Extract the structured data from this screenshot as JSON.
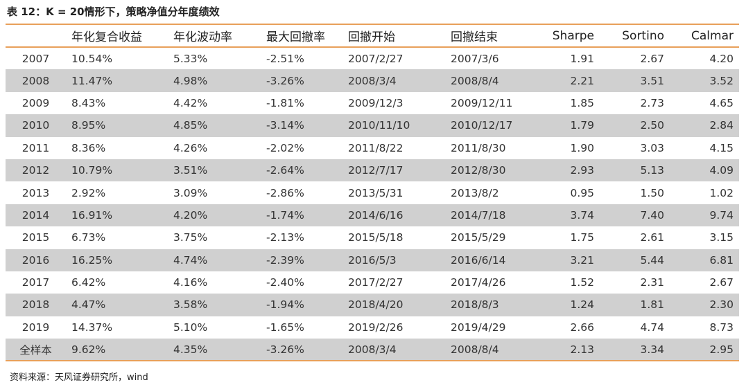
{
  "title": "表 12：K = 20情形下，策略净值分年度绩效",
  "table": {
    "header": [
      "年化复合收益",
      "年化波动率",
      "最大回撤率",
      "回撤开始",
      "回撤结束",
      "Sharpe",
      "Sortino",
      "Calmar"
    ],
    "rows": [
      [
        "2007",
        "10.54%",
        "5.33%",
        "-2.51%",
        "2007/2/27",
        "2007/3/6",
        "1.91",
        "2.67",
        "4.20"
      ],
      [
        "2008",
        "11.47%",
        "4.98%",
        "-3.26%",
        "2008/3/4",
        "2008/8/4",
        "2.21",
        "3.51",
        "3.52"
      ],
      [
        "2009",
        "8.43%",
        "4.42%",
        "-1.81%",
        "2009/12/3",
        "2009/12/11",
        "1.85",
        "2.73",
        "4.65"
      ],
      [
        "2010",
        "8.95%",
        "4.85%",
        "-3.14%",
        "2010/11/10",
        "2010/12/17",
        "1.79",
        "2.50",
        "2.84"
      ],
      [
        "2011",
        "8.36%",
        "4.26%",
        "-2.02%",
        "2011/8/22",
        "2011/8/30",
        "1.90",
        "3.03",
        "4.15"
      ],
      [
        "2012",
        "10.79%",
        "3.51%",
        "-2.64%",
        "2012/7/17",
        "2012/8/30",
        "2.93",
        "5.13",
        "4.09"
      ],
      [
        "2013",
        "2.92%",
        "3.09%",
        "-2.86%",
        "2013/5/31",
        "2013/8/2",
        "0.95",
        "1.50",
        "1.02"
      ],
      [
        "2014",
        "16.91%",
        "4.20%",
        "-1.74%",
        "2014/6/16",
        "2014/7/18",
        "3.74",
        "7.40",
        "9.74"
      ],
      [
        "2015",
        "6.73%",
        "3.75%",
        "-2.13%",
        "2015/5/18",
        "2015/5/29",
        "1.75",
        "2.61",
        "3.15"
      ],
      [
        "2016",
        "16.25%",
        "4.74%",
        "-2.39%",
        "2016/5/3",
        "2016/6/14",
        "3.21",
        "5.44",
        "6.81"
      ],
      [
        "2017",
        "6.42%",
        "4.16%",
        "-2.40%",
        "2017/2/27",
        "2017/4/26",
        "1.52",
        "2.31",
        "2.67"
      ],
      [
        "2018",
        "4.47%",
        "3.58%",
        "-1.94%",
        "2018/4/20",
        "2018/8/3",
        "1.24",
        "1.81",
        "2.30"
      ],
      [
        "2019",
        "14.37%",
        "5.10%",
        "-1.65%",
        "2019/2/26",
        "2019/4/29",
        "2.66",
        "4.74",
        "8.73"
      ],
      [
        "全样本",
        "9.62%",
        "4.35%",
        "-3.26%",
        "2008/3/4",
        "2008/8/4",
        "2.13",
        "3.34",
        "2.95"
      ]
    ]
  },
  "source": "资料来源：天风证券研究所，wind"
}
